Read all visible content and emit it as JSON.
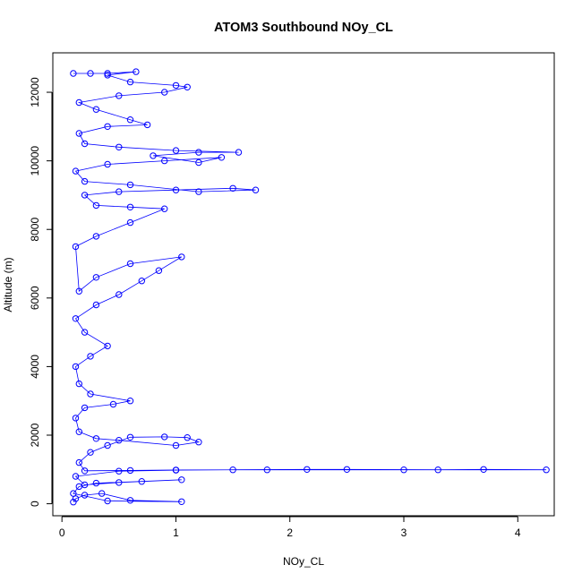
{
  "chart_data": {
    "type": "scatter",
    "title": "ATOM3 Southbound NOy_CL",
    "xlabel": "NOy_CL",
    "ylabel": "Altitude (m)",
    "xlim": [
      -0.08,
      4.32
    ],
    "ylim": [
      -350,
      13150
    ],
    "x_ticks": [
      0,
      1,
      2,
      3,
      4
    ],
    "x_tick_labels": [
      "0",
      "1",
      "2",
      "3",
      "4"
    ],
    "y_ticks": [
      0,
      2000,
      4000,
      6000,
      8000,
      10000,
      12000
    ],
    "y_tick_labels": [
      "0",
      "2000",
      "4000",
      "6000",
      "8000",
      "10000",
      "12000"
    ],
    "grid": false,
    "legend": "none",
    "series_color": "#0000ff",
    "marker": "open-circle",
    "connected": true,
    "series": [
      {
        "points": [
          [
            0.1,
            50
          ],
          [
            0.12,
            150
          ],
          [
            0.2,
            250
          ],
          [
            0.35,
            300
          ],
          [
            0.6,
            100
          ],
          [
            1.05,
            60
          ],
          [
            0.4,
            80
          ],
          [
            0.1,
            300
          ],
          [
            0.15,
            500
          ],
          [
            0.3,
            600
          ],
          [
            0.7,
            650
          ],
          [
            1.05,
            700
          ],
          [
            0.5,
            620
          ],
          [
            0.2,
            550
          ],
          [
            0.12,
            800
          ],
          [
            0.5,
            950
          ],
          [
            1.0,
            980
          ],
          [
            1.5,
            990
          ],
          [
            2.15,
            1000
          ],
          [
            2.5,
            1000
          ],
          [
            3.3,
            990
          ],
          [
            3.7,
            1000
          ],
          [
            4.25,
            990
          ],
          [
            3.0,
            990
          ],
          [
            1.8,
            990
          ],
          [
            1.0,
            985
          ],
          [
            0.6,
            970
          ],
          [
            0.2,
            960
          ],
          [
            0.15,
            1200
          ],
          [
            0.25,
            1500
          ],
          [
            0.4,
            1700
          ],
          [
            0.6,
            1940
          ],
          [
            0.9,
            1950
          ],
          [
            1.1,
            1930
          ],
          [
            1.2,
            1800
          ],
          [
            1.0,
            1700
          ],
          [
            0.5,
            1850
          ],
          [
            0.3,
            1900
          ],
          [
            0.15,
            2100
          ],
          [
            0.12,
            2500
          ],
          [
            0.2,
            2800
          ],
          [
            0.45,
            2900
          ],
          [
            0.6,
            3000
          ],
          [
            0.25,
            3200
          ],
          [
            0.15,
            3500
          ],
          [
            0.12,
            4000
          ],
          [
            0.25,
            4300
          ],
          [
            0.4,
            4600
          ],
          [
            0.2,
            5000
          ],
          [
            0.12,
            5400
          ],
          [
            0.3,
            5800
          ],
          [
            0.5,
            6100
          ],
          [
            0.7,
            6500
          ],
          [
            0.85,
            6800
          ],
          [
            1.05,
            7200
          ],
          [
            0.6,
            7000
          ],
          [
            0.3,
            6600
          ],
          [
            0.15,
            6200
          ],
          [
            0.12,
            7500
          ],
          [
            0.3,
            7800
          ],
          [
            0.6,
            8200
          ],
          [
            0.9,
            8600
          ],
          [
            0.6,
            8650
          ],
          [
            0.3,
            8700
          ],
          [
            0.2,
            9000
          ],
          [
            0.5,
            9100
          ],
          [
            1.0,
            9150
          ],
          [
            1.5,
            9200
          ],
          [
            1.7,
            9150
          ],
          [
            1.2,
            9100
          ],
          [
            0.6,
            9300
          ],
          [
            0.2,
            9400
          ],
          [
            0.12,
            9700
          ],
          [
            0.4,
            9900
          ],
          [
            0.9,
            10000
          ],
          [
            1.4,
            10100
          ],
          [
            1.2,
            9950
          ],
          [
            0.8,
            10150
          ],
          [
            1.2,
            10250
          ],
          [
            1.55,
            10250
          ],
          [
            1.0,
            10300
          ],
          [
            0.5,
            10400
          ],
          [
            0.2,
            10500
          ],
          [
            0.15,
            10800
          ],
          [
            0.4,
            11000
          ],
          [
            0.75,
            11050
          ],
          [
            0.6,
            11200
          ],
          [
            0.3,
            11500
          ],
          [
            0.15,
            11700
          ],
          [
            0.5,
            11900
          ],
          [
            0.9,
            12000
          ],
          [
            1.1,
            12150
          ],
          [
            1.0,
            12200
          ],
          [
            0.6,
            12300
          ],
          [
            0.4,
            12500
          ],
          [
            0.65,
            12600
          ],
          [
            0.4,
            12550
          ],
          [
            0.25,
            12550
          ],
          [
            0.1,
            12550
          ]
        ]
      }
    ]
  }
}
